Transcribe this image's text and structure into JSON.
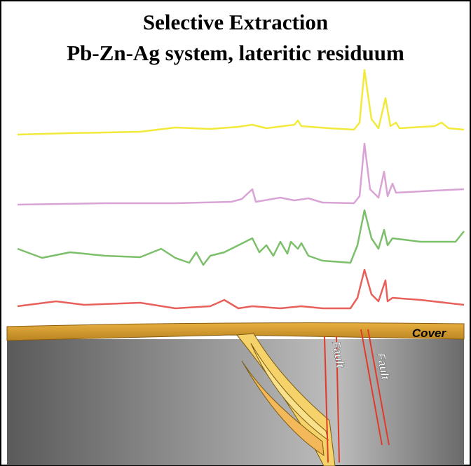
{
  "title": {
    "line1": "Selective Extraction",
    "line2": "Pb-Zn-Ag system, lateritic residuum"
  },
  "labels": {
    "cover": "Cover",
    "fault_left": "Fault",
    "fault_right": "Fault"
  }
}
